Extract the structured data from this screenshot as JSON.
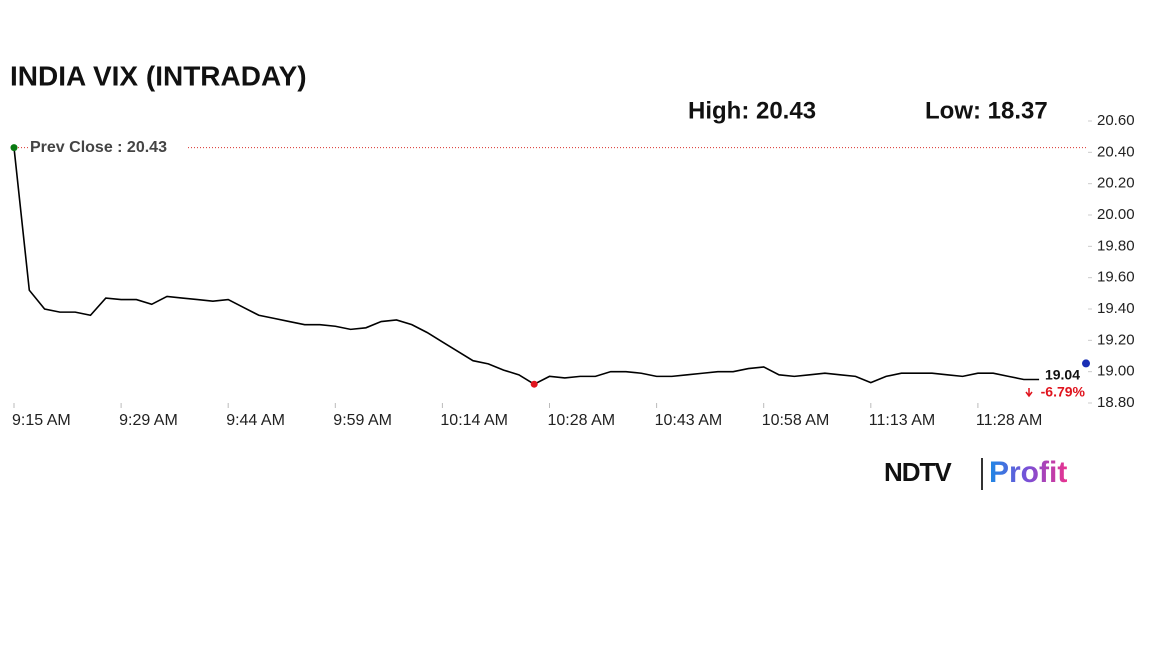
{
  "chart_data": {
    "type": "line",
    "title": "INDIA VIX (INTRADAY)",
    "high_label": "High: 20.43",
    "low_label": "Low: 18.37",
    "categories": [
      "9:15 AM",
      null,
      null,
      null,
      null,
      null,
      null,
      "9:29 AM",
      null,
      null,
      null,
      null,
      null,
      null,
      "9:44 AM",
      null,
      null,
      null,
      null,
      null,
      null,
      "9:59 AM",
      null,
      null,
      null,
      null,
      null,
      null,
      "10:14 AM",
      null,
      null,
      null,
      null,
      null,
      null,
      "10:28 AM",
      null,
      null,
      null,
      null,
      null,
      null,
      "10:43 AM",
      null,
      null,
      null,
      null,
      null,
      null,
      "10:58 AM",
      null,
      null,
      null,
      null,
      null,
      null,
      "11:13 AM",
      null,
      null,
      null,
      null,
      null,
      null,
      "11:28 AM",
      null,
      null,
      null,
      null
    ],
    "series": [
      {
        "color": "#000000",
        "values": [
          20.43,
          19.52,
          19.4,
          19.38,
          19.38,
          19.36,
          19.47,
          19.46,
          19.46,
          19.43,
          19.48,
          19.47,
          19.46,
          19.45,
          19.46,
          19.41,
          19.36,
          19.34,
          19.32,
          19.3,
          19.3,
          19.29,
          19.27,
          19.28,
          19.32,
          19.33,
          19.3,
          19.25,
          19.19,
          19.13,
          19.07,
          19.05,
          19.01,
          18.98,
          18.92,
          18.97,
          18.96,
          18.97,
          18.97,
          19.0,
          19.0,
          18.99,
          18.97,
          18.97,
          18.98,
          18.99,
          19.0,
          19.0,
          19.02,
          19.03,
          18.98,
          18.97,
          18.98,
          18.99,
          18.98,
          18.97,
          18.93,
          18.97,
          18.99,
          18.99,
          18.99,
          18.98,
          18.97,
          18.99,
          18.99,
          18.97,
          18.95,
          18.95
        ]
      }
    ],
    "prev_close": {
      "value": 20.43,
      "label": "Prev Close : 20.43",
      "color": "#d9302c"
    },
    "current": {
      "value": 19.04,
      "change_label": "-6.79%",
      "color": "#1a2fb5"
    },
    "low_marker_color": "#e0141e",
    "start_marker_color": "#0a7a12",
    "ylim": [
      18.8,
      20.6
    ],
    "yticks": [
      {
        "value": 18.8,
        "label": "18.80"
      },
      {
        "value": 19.0,
        "label": "19.00"
      },
      {
        "value": 19.2,
        "label": "19.20"
      },
      {
        "value": 19.4,
        "label": "19.40"
      },
      {
        "value": 19.6,
        "label": "19.60"
      },
      {
        "value": 19.8,
        "label": "19.80"
      },
      {
        "value": 20.0,
        "label": "20.00"
      },
      {
        "value": 20.2,
        "label": "20.20"
      },
      {
        "value": 20.4,
        "label": "20.40"
      },
      {
        "value": 20.6,
        "label": "20.60"
      }
    ]
  },
  "logo": {
    "left": "NDTV",
    "right": "Profit"
  }
}
